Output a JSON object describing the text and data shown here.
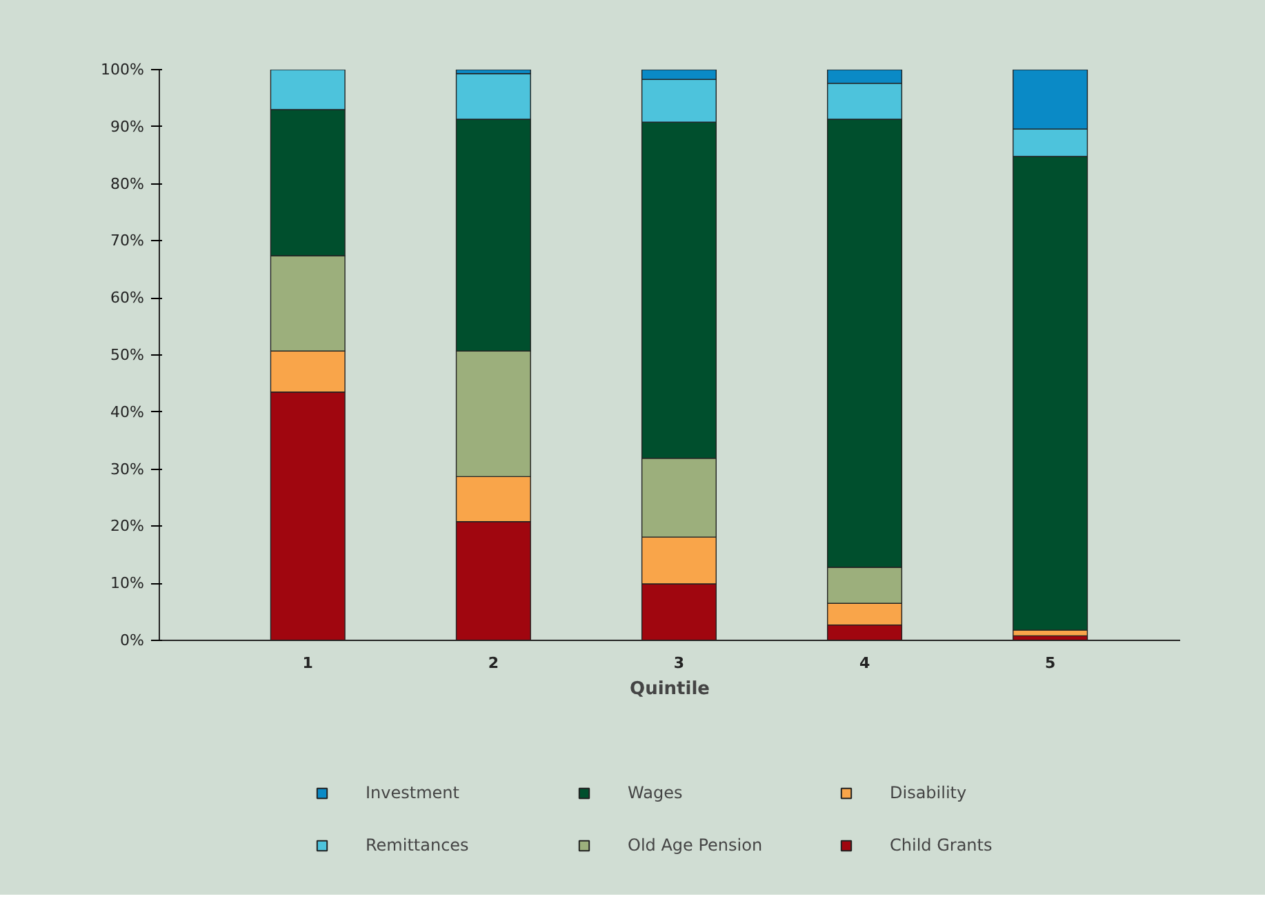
{
  "chart_data": {
    "type": "bar",
    "stacked": true,
    "xlabel": "Quintile",
    "categories": [
      "1",
      "2",
      "3",
      "4",
      "5"
    ],
    "ylim": [
      0,
      100
    ],
    "yticks": [
      {
        "value": 0,
        "label": "0%"
      },
      {
        "value": 10,
        "label": "10%"
      },
      {
        "value": 20,
        "label": "20%"
      },
      {
        "value": 30,
        "label": "30%"
      },
      {
        "value": 40,
        "label": "40%"
      },
      {
        "value": 50,
        "label": "50%"
      },
      {
        "value": 60,
        "label": "60%"
      },
      {
        "value": 70,
        "label": "70%"
      },
      {
        "value": 80,
        "label": "80%"
      },
      {
        "value": 90,
        "label": "90%"
      },
      {
        "value": 100,
        "label": "100%"
      }
    ],
    "grid": false,
    "legend": "bottom",
    "series": [
      {
        "name": "Child Grants",
        "color": "#a0060f",
        "values": [
          43.5,
          20.8,
          9.9,
          2.7,
          0.8
        ]
      },
      {
        "name": "Disability",
        "color": "#f9a54a",
        "values": [
          7.2,
          7.9,
          8.2,
          3.8,
          1.0
        ]
      },
      {
        "name": "Old Age Pension",
        "color": "#9caf7c",
        "values": [
          16.7,
          22.0,
          13.8,
          6.3,
          0
        ]
      },
      {
        "name": "Wages",
        "color": "#004f2d",
        "values": [
          25.6,
          40.6,
          58.9,
          78.5,
          83.0
        ]
      },
      {
        "name": "Remittances",
        "color": "#4dc3dc",
        "values": [
          7.0,
          8.0,
          7.5,
          6.3,
          4.8
        ]
      },
      {
        "name": "Investment",
        "color": "#0a8ac6",
        "values": [
          0,
          0.7,
          1.7,
          2.4,
          10.4
        ]
      }
    ]
  }
}
